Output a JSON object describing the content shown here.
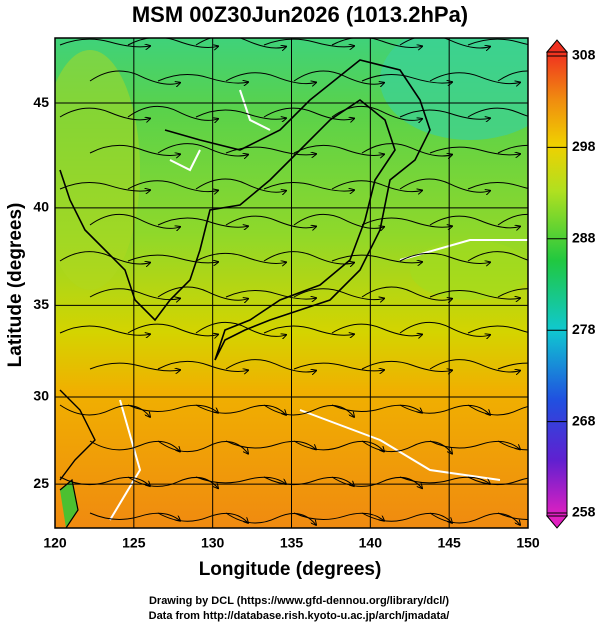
{
  "title": "MSM 00Z30Jun2026 (1013.2hPa)",
  "map": {
    "x_label": "Longitude (degrees)",
    "y_label": "Latitude  (degrees)",
    "xlim": [
      120,
      150
    ],
    "ylim": [
      22.4,
      47.9
    ],
    "xticks": [
      120,
      125,
      130,
      135,
      140,
      145,
      150
    ],
    "yticks": [
      25,
      30,
      35,
      40,
      45
    ]
  },
  "colorbar": {
    "ticks": [
      258,
      268,
      278,
      288,
      298,
      308
    ]
  },
  "credits": [
    "Drawing by DCL (https://www.gfd-dennou.org/library/dcl/)",
    "Data from http://database.rish.kyoto-u.ac.jp/arch/jmadata/"
  ]
}
